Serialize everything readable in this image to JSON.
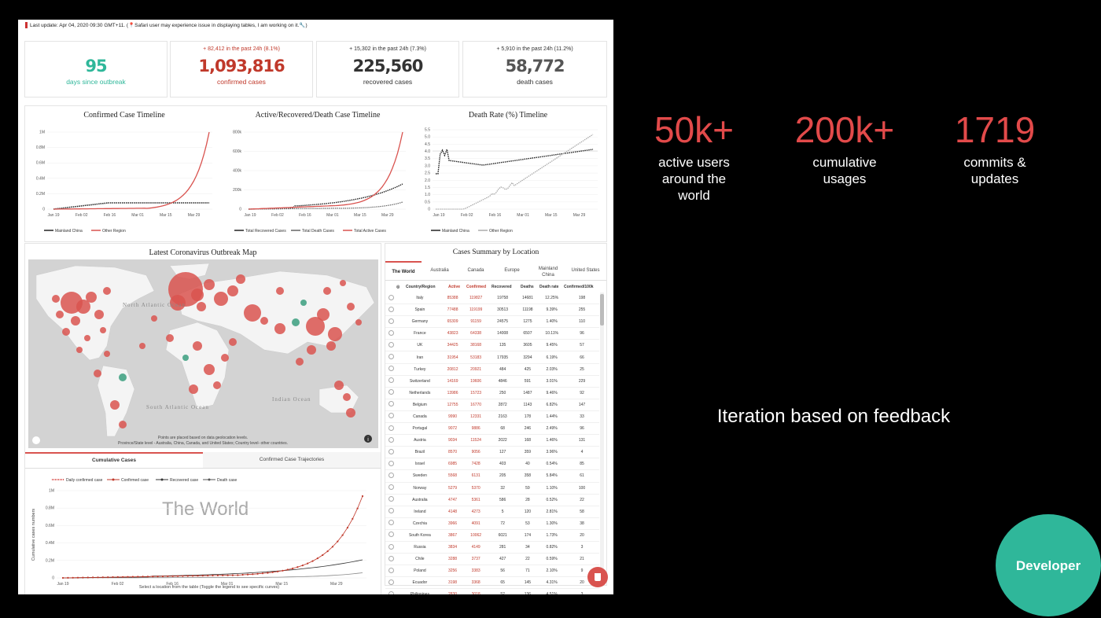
{
  "notice": "Last update: Apr 04, 2020 09:30 GMT+11. (📍Safari user may experience issue in displaying tables, I am working on it.🔧)",
  "cards": [
    {
      "delta": "",
      "value": "95",
      "label": "days since outbreak",
      "color": "#2fb79a"
    },
    {
      "delta": "+ 82,412 in the past 24h (8.1%)",
      "value": "1,093,816",
      "label": "confirmed cases",
      "color": "#c0392b"
    },
    {
      "delta": "+ 15,302 in the past 24h (7.3%)",
      "value": "225,560",
      "label": "recovered cases",
      "color": "#333333"
    },
    {
      "delta": "+ 5,910 in the past 24h (11.2%)",
      "value": "58,772",
      "label": "death cases",
      "color": "#555555"
    }
  ],
  "timelines": {
    "confirmed": {
      "title": "Confirmed Case Timeline",
      "yticks": [
        "0",
        "0.2M",
        "0.4M",
        "0.6M",
        "0.8M",
        "1M"
      ],
      "xticks": [
        "Jan 19",
        "Feb 02",
        "Feb 16",
        "Mar 01",
        "Mar 15",
        "Mar 29"
      ],
      "legend": [
        "Mainland China",
        "Other Region"
      ]
    },
    "active": {
      "title": "Active/Recovered/Death Case Timeline",
      "yticks": [
        "0",
        "200k",
        "400k",
        "600k",
        "800k"
      ],
      "xticks": [
        "Jan 19",
        "Feb 02",
        "Feb 16",
        "Mar 01",
        "Mar 15",
        "Mar 29"
      ],
      "legend": [
        "Total Recovered Cases",
        "Total Death Cases",
        "Total Active Cases"
      ]
    },
    "deathrate": {
      "title": "Death Rate (%) Timeline",
      "yticks": [
        "0",
        "0.5",
        "1.0",
        "1.5",
        "2.0",
        "2.5",
        "3.0",
        "3.5",
        "4.0",
        "4.5",
        "5.0",
        "5.5"
      ],
      "xticks": [
        "Jan 19",
        "Feb 02",
        "Feb 16",
        "Mar 01",
        "Mar 15",
        "Mar 29"
      ],
      "legend": [
        "Mainland China",
        "Other Region"
      ]
    }
  },
  "map": {
    "title": "Latest Coronavirus Outbreak Map",
    "labels": {
      "north_atlantic": "North Atlantic Ocean",
      "south_atlantic": "South Atlantic Ocean",
      "indian": "Indian Ocean"
    },
    "caption_line1": "Points are placed based on data geolocation levels.",
    "caption_line2": "Province/State level - Australia, China, Canada, and United States; Country level- other countries."
  },
  "bottom_tabs": [
    "Cumulative Cases",
    "Confirmed Case Trajectories"
  ],
  "cumulative": {
    "legend": [
      "Daily confirmed case",
      "Confirmed case",
      "Recovered case",
      "Death case"
    ],
    "watermark": "The World",
    "ylabel": "Cumulative cases numbers",
    "yticks": [
      "0",
      "0.2M",
      "0.4M",
      "0.6M",
      "0.8M",
      "1M"
    ],
    "xticks": [
      "Jan 19",
      "Feb 02",
      "Feb 16",
      "Mar 01",
      "Mar 15",
      "Mar 29"
    ],
    "caption": "Select a location from the table (Toggle the legend to see specific curves)"
  },
  "summary": {
    "title": "Cases Summary by Location",
    "tabs": [
      "The World",
      "Australia",
      "Canada",
      "Europe",
      "Mainland China",
      "United States"
    ],
    "columns": [
      "Country/Region",
      "Active",
      "Confirmed",
      "Recovered",
      "Deaths",
      "Death rate",
      "Confirmed/100k"
    ],
    "rows": [
      [
        "Italy",
        "85388",
        "119827",
        "19758",
        "14681",
        "12.25%",
        "198"
      ],
      [
        "Spain",
        "77488",
        "119199",
        "30513",
        "11198",
        "9.39%",
        "255"
      ],
      [
        "Germany",
        "65309",
        "91159",
        "24575",
        "1275",
        "1.40%",
        "110"
      ],
      [
        "France",
        "43823",
        "64338",
        "14008",
        "6507",
        "10.11%",
        "96"
      ],
      [
        "UK",
        "34425",
        "38168",
        "135",
        "3605",
        "9.45%",
        "57"
      ],
      [
        "Iran",
        "31954",
        "53183",
        "17935",
        "3294",
        "6.19%",
        "66"
      ],
      [
        "Turkey",
        "20812",
        "20921",
        "484",
        "425",
        "2.03%",
        "25"
      ],
      [
        "Switzerland",
        "14169",
        "19606",
        "4846",
        "591",
        "3.01%",
        "229"
      ],
      [
        "Netherlands",
        "13986",
        "15723",
        "250",
        "1487",
        "9.46%",
        "92"
      ],
      [
        "Belgium",
        "12755",
        "16770",
        "2872",
        "1143",
        "6.82%",
        "147"
      ],
      [
        "Canada",
        "9990",
        "12331",
        "2163",
        "178",
        "1.44%",
        "33"
      ],
      [
        "Portugal",
        "9072",
        "9886",
        "68",
        "246",
        "2.49%",
        "96"
      ],
      [
        "Austria",
        "9034",
        "11524",
        "2022",
        "168",
        "1.46%",
        "131"
      ],
      [
        "Brazil",
        "8570",
        "9056",
        "127",
        "359",
        "3.96%",
        "4"
      ],
      [
        "Israel",
        "6985",
        "7428",
        "403",
        "40",
        "0.54%",
        "85"
      ],
      [
        "Sweden",
        "5568",
        "6131",
        "205",
        "358",
        "5.84%",
        "61"
      ],
      [
        "Norway",
        "5279",
        "5370",
        "32",
        "59",
        "1.10%",
        "100"
      ],
      [
        "Australia",
        "4747",
        "5361",
        "586",
        "28",
        "0.52%",
        "22"
      ],
      [
        "Ireland",
        "4148",
        "4273",
        "5",
        "120",
        "2.81%",
        "58"
      ],
      [
        "Czechia",
        "3966",
        "4091",
        "72",
        "53",
        "1.30%",
        "38"
      ],
      [
        "South Korea",
        "3867",
        "10062",
        "6021",
        "174",
        "1.73%",
        "20"
      ],
      [
        "Russia",
        "3834",
        "4149",
        "281",
        "34",
        "0.82%",
        "3"
      ],
      [
        "Chile",
        "3288",
        "3737",
        "427",
        "22",
        "0.59%",
        "21"
      ],
      [
        "Poland",
        "3256",
        "3383",
        "56",
        "71",
        "2.10%",
        "9"
      ],
      [
        "Ecuador",
        "3198",
        "3368",
        "65",
        "145",
        "4.31%",
        "20"
      ],
      [
        "Philippines",
        "2830",
        "3018",
        "52",
        "136",
        "4.51%",
        "3"
      ]
    ]
  },
  "stats": [
    {
      "value": "50k+",
      "line1": "active users",
      "line2": "around the",
      "line3": "world"
    },
    {
      "value": "200k+",
      "line1": "cumulative",
      "line2": "usages",
      "line3": ""
    },
    {
      "value": "1719",
      "line1": "commits &",
      "line2": "updates",
      "line3": ""
    }
  ],
  "feedback": "Iteration based on feedback",
  "badge": "Developer",
  "colors": {
    "accent": "#e24a4a",
    "badge": "#2fb79a",
    "confirmed": "#c0392b"
  }
}
